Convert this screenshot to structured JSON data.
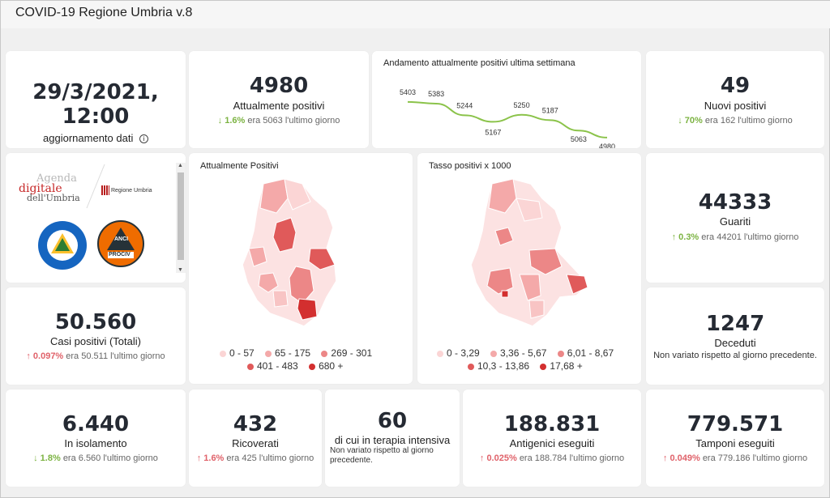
{
  "app": {
    "title": "COVID-19 Regione Umbria v.8"
  },
  "date_card": {
    "value": "29/3/2021, 12:00",
    "label": "aggiornamento dati",
    "info_icon": "info-icon"
  },
  "attualmente": {
    "value": "4980",
    "label": "Attualmente positivi",
    "arrow": "↓",
    "pct": "1.6%",
    "note": "era 5063 l'ultimo giorno"
  },
  "trend": {
    "title": "Andamento attualmente positivi ultima settimana",
    "chart_data": {
      "type": "line",
      "values": [
        5403,
        5383,
        5244,
        5167,
        5250,
        5187,
        5063,
        4980
      ],
      "labels": [
        "5403",
        "5383",
        "5244",
        "5167",
        "5250",
        "5187",
        "5063",
        "4980"
      ],
      "color": "#8bc34a"
    }
  },
  "nuovi": {
    "value": "49",
    "label": "Nuovi positivi",
    "arrow": "↓",
    "pct": "70%",
    "note": "era 162 l'ultimo giorno"
  },
  "logos": {
    "agenda_line1": "Agenda",
    "agenda_line2": "digitale",
    "agenda_line3": "dell'Umbria",
    "regione": "Regione Umbria",
    "protezione": "Protezione Civile",
    "protezione_sub": "Regione Umbria",
    "anci": "ANCI",
    "anci_sub": "UMBRIA",
    "prociv": "PROCIV"
  },
  "map1": {
    "title": "Attualmente Positivi",
    "legend": [
      {
        "label": "0 - 57",
        "color": "#fbd5d5"
      },
      {
        "label": "65 - 175",
        "color": "#f4a9a9"
      },
      {
        "label": "269 - 301",
        "color": "#ec8787"
      },
      {
        "label": "401 - 483",
        "color": "#e05a5a"
      },
      {
        "label": "680 +",
        "color": "#d32f2f"
      }
    ]
  },
  "map2": {
    "title": "Tasso positivi x 1000",
    "legend": [
      {
        "label": "0 - 3,29",
        "color": "#fbd5d5"
      },
      {
        "label": "3,36 - 5,67",
        "color": "#f4a9a9"
      },
      {
        "label": "6,01 - 8,67",
        "color": "#ec8787"
      },
      {
        "label": "10,3 - 13,86",
        "color": "#e05a5a"
      },
      {
        "label": "17,68 +",
        "color": "#d32f2f"
      }
    ]
  },
  "guariti": {
    "value": "44333",
    "label": "Guariti",
    "arrow": "↑",
    "pct": "0.3%",
    "note": "era 44201 l'ultimo giorno"
  },
  "casi": {
    "value": "50.560",
    "label": "Casi positivi (Totali)",
    "arrow": "↑",
    "pct": "0.097%",
    "note": "era 50.511 l'ultimo giorno"
  },
  "deceduti": {
    "value": "1247",
    "label": "Deceduti",
    "note": "Non variato rispetto al giorno precedente."
  },
  "isolamento": {
    "value": "6.440",
    "label": "In isolamento",
    "arrow": "↓",
    "pct": "1.8%",
    "note": "era 6.560 l'ultimo giorno"
  },
  "ricoverati": {
    "value": "432",
    "label": "Ricoverati",
    "arrow": "↑",
    "pct": "1.6%",
    "note": "era 425 l'ultimo giorno"
  },
  "terapia": {
    "value": "60",
    "label": "di cui in terapia intensiva",
    "note": "Non variato rispetto al giorno precedente."
  },
  "antigenici": {
    "value": "188.831",
    "label": "Antigenici eseguiti",
    "arrow": "↑",
    "pct": "0.025%",
    "note": "era 188.784 l'ultimo giorno"
  },
  "tamponi": {
    "value": "779.571",
    "label": "Tamponi eseguiti",
    "arrow": "↑",
    "pct": "0.049%",
    "note": "era 779.186 l'ultimo giorno"
  }
}
